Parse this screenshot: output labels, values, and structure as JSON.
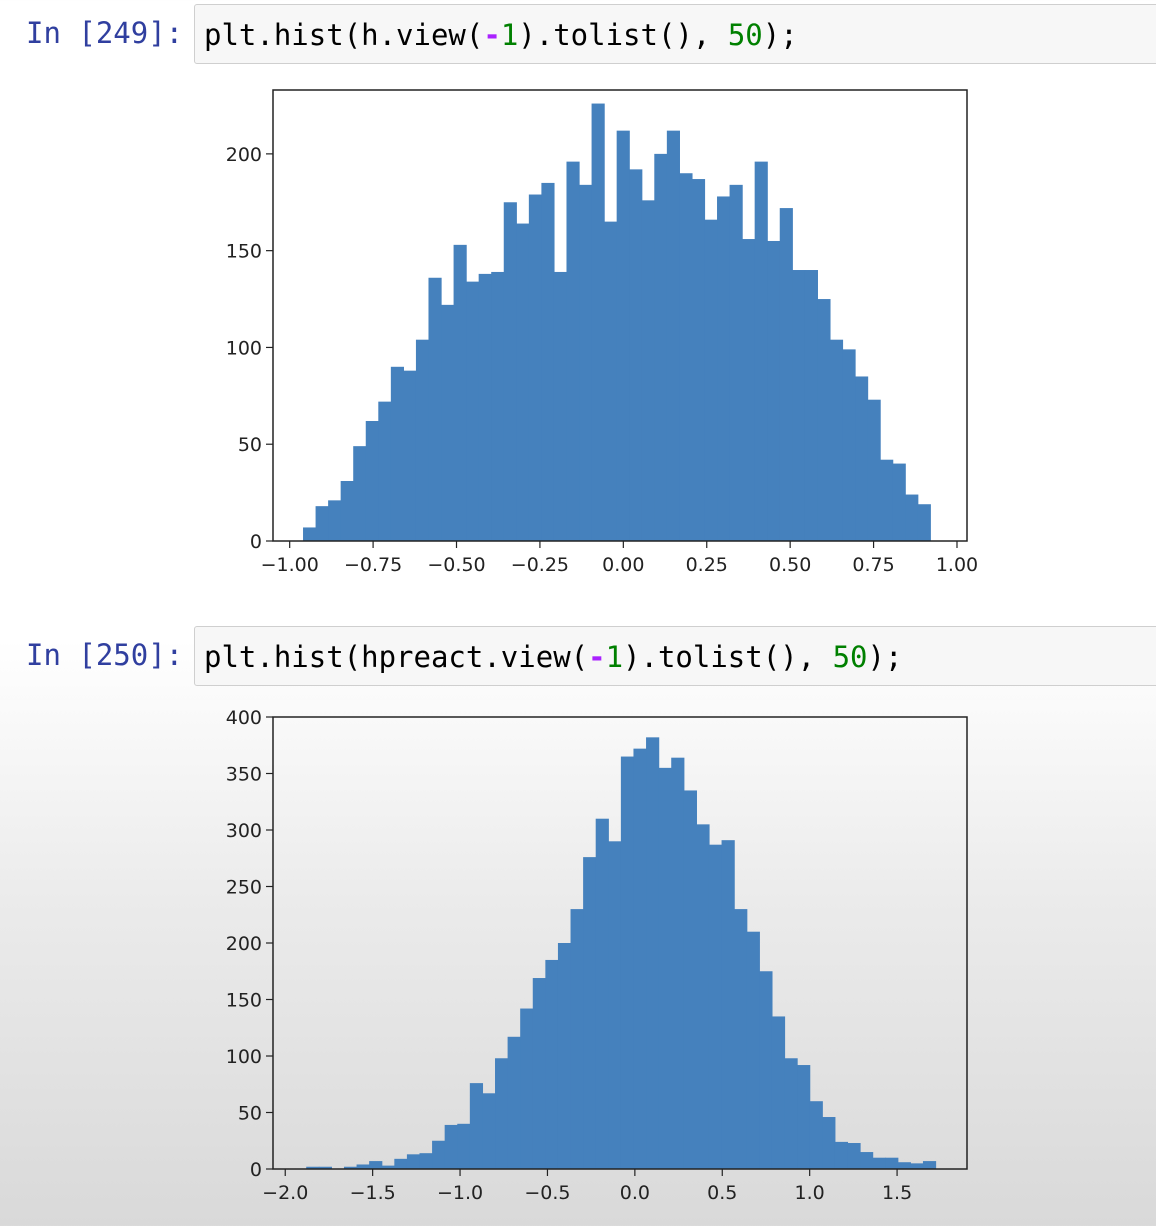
{
  "cells": [
    {
      "prompt": "In [249]:",
      "code": {
        "fn": "plt.hist(h.view(",
        "neg": "-",
        "arg": "1",
        "mid": ").tolist(), ",
        "bins": "50",
        "end": ");"
      }
    },
    {
      "prompt": "In [250]:",
      "code": {
        "fn": "plt.hist(hpreact.view(",
        "neg": "-",
        "arg": "1",
        "mid": ").tolist(), ",
        "bins": "50",
        "end": ");"
      }
    }
  ],
  "colors": {
    "bar": "#4581bd",
    "prompt": "#303f9f",
    "number": "#008000",
    "operator": "#aa22ff"
  },
  "chart_data": [
    {
      "type": "bar",
      "xlim": [
        -1.05,
        1.03
      ],
      "ylim": [
        0,
        233
      ],
      "bin_start": -0.96,
      "bin_width": 0.0376,
      "values": [
        7,
        18,
        21,
        31,
        49,
        62,
        72,
        90,
        88,
        104,
        136,
        122,
        153,
        134,
        138,
        139,
        175,
        164,
        179,
        185,
        139,
        196,
        184,
        226,
        165,
        212,
        192,
        176,
        200,
        212,
        190,
        187,
        166,
        178,
        184,
        156,
        196,
        155,
        172,
        140,
        140,
        125,
        104,
        99,
        85,
        73,
        42,
        40,
        24,
        19
      ],
      "xticks": [
        -1.0,
        -0.75,
        -0.5,
        -0.25,
        0.0,
        0.25,
        0.5,
        0.75,
        1.0
      ],
      "xtick_labels": [
        "−1.00",
        "−0.75",
        "−0.50",
        "−0.25",
        "0.00",
        "0.25",
        "0.50",
        "0.75",
        "1.00"
      ],
      "yticks": [
        0,
        50,
        100,
        150,
        200
      ],
      "ytick_labels": [
        "0",
        "50",
        "100",
        "150",
        "200"
      ]
    },
    {
      "type": "bar",
      "xlim": [
        -2.07,
        1.9
      ],
      "ylim": [
        0,
        400
      ],
      "bin_start": -1.88,
      "bin_width": 0.072,
      "values": [
        2,
        2,
        0,
        2,
        4,
        7,
        3,
        9,
        13,
        14,
        25,
        39,
        40,
        76,
        67,
        98,
        117,
        142,
        169,
        185,
        200,
        230,
        276,
        310,
        290,
        365,
        372,
        382,
        355,
        364,
        335,
        305,
        287,
        291,
        230,
        210,
        175,
        135,
        98,
        92,
        60,
        46,
        24,
        23,
        15,
        10,
        10,
        6,
        5,
        7
      ],
      "xticks": [
        -2.0,
        -1.5,
        -1.0,
        -0.5,
        0.0,
        0.5,
        1.0,
        1.5
      ],
      "xtick_labels": [
        "−2.0",
        "−1.5",
        "−1.0",
        "−0.5",
        "0.0",
        "0.5",
        "1.0",
        "1.5"
      ],
      "yticks": [
        0,
        50,
        100,
        150,
        200,
        250,
        300,
        350,
        400
      ],
      "ytick_labels": [
        "0",
        "50",
        "100",
        "150",
        "200",
        "250",
        "300",
        "350",
        "400"
      ]
    }
  ]
}
